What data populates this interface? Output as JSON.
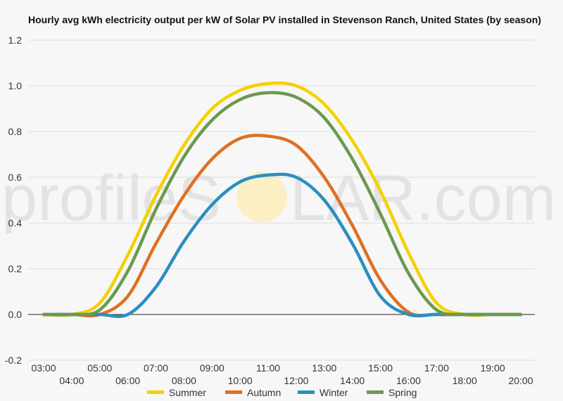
{
  "watermark": {
    "left": "profileS",
    "right": "LAR.com",
    "sun_color": "#fcefc4"
  },
  "chart_data": {
    "type": "line",
    "title": "Hourly avg kWh electricity output per kW of Solar PV installed in Stevenson Ranch, United States (by season)",
    "xlabel": "",
    "ylabel": "",
    "x": [
      "03:00",
      "04:00",
      "05:00",
      "06:00",
      "07:00",
      "08:00",
      "09:00",
      "10:00",
      "11:00",
      "12:00",
      "13:00",
      "14:00",
      "15:00",
      "16:00",
      "17:00",
      "18:00",
      "19:00",
      "20:00"
    ],
    "x_tick_labels": [
      "03:00",
      "04:00",
      "05:00",
      "06:00",
      "07:00",
      "08:00",
      "09:00",
      "10:00",
      "11:00",
      "12:00",
      "13:00",
      "14:00",
      "15:00",
      "16:00",
      "17:00",
      "18:00",
      "19:00",
      "20:00"
    ],
    "ylim": [
      -0.2,
      1.2
    ],
    "y_ticks": [
      -0.2,
      0.0,
      0.2,
      0.4,
      0.6,
      0.8,
      1.0,
      1.2
    ],
    "y_tick_labels": [
      "-0.2",
      "0.0",
      "0.2",
      "0.4",
      "0.6",
      "0.8",
      "1.0",
      "1.2"
    ],
    "grid": true,
    "legend_position": "bottom",
    "series": [
      {
        "name": "Summer",
        "color": "#f5d100",
        "values": [
          0.0,
          0.0,
          0.05,
          0.26,
          0.52,
          0.74,
          0.9,
          0.98,
          1.01,
          1.0,
          0.92,
          0.76,
          0.54,
          0.27,
          0.05,
          0.0,
          0.0,
          0.0
        ]
      },
      {
        "name": "Autumn",
        "color": "#e07020",
        "values": [
          0.0,
          0.0,
          0.0,
          0.08,
          0.31,
          0.52,
          0.68,
          0.77,
          0.78,
          0.74,
          0.6,
          0.39,
          0.15,
          0.01,
          0.0,
          0.0,
          0.0,
          0.0
        ]
      },
      {
        "name": "Winter",
        "color": "#2a8fc0",
        "values": [
          0.0,
          0.0,
          0.0,
          0.0,
          0.12,
          0.32,
          0.48,
          0.58,
          0.61,
          0.6,
          0.5,
          0.31,
          0.08,
          0.0,
          0.0,
          0.0,
          0.0,
          0.0
        ]
      },
      {
        "name": "Spring",
        "color": "#6a9a50",
        "values": [
          0.0,
          0.0,
          0.02,
          0.19,
          0.46,
          0.69,
          0.85,
          0.94,
          0.97,
          0.95,
          0.86,
          0.68,
          0.44,
          0.18,
          0.02,
          0.0,
          0.0,
          0.0
        ]
      }
    ]
  }
}
